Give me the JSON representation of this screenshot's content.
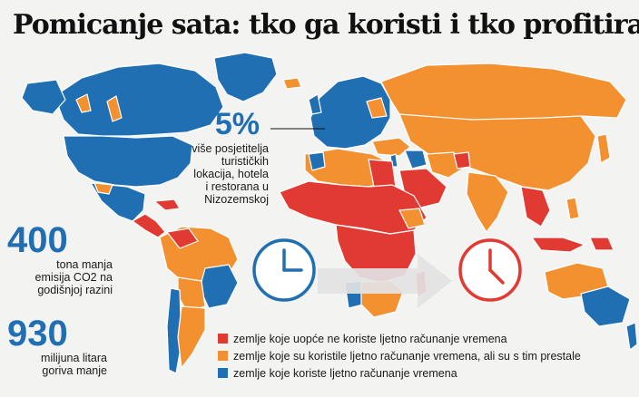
{
  "title": "Pomicanje sata: tko ga koristi i tko profitira",
  "colors": {
    "red": "#e03a33",
    "orange": "#f39131",
    "blue": "#1f6fb2",
    "land_outline": "#ffffff",
    "arrow": "#e3e3e3"
  },
  "stats": {
    "tourism": {
      "value": "5%",
      "lines": [
        "više posjetitelja",
        "turističkih",
        "lokacija, hotela",
        "i restorana u",
        "Nizozemskoj"
      ]
    },
    "co2": {
      "value": "400",
      "lines": [
        "tona manja",
        "emisija CO2 na",
        "godišnjoj razini"
      ]
    },
    "fuel": {
      "value": "930",
      "lines": [
        "milijuna litara",
        "goriva manje"
      ]
    }
  },
  "clocks": {
    "left": {
      "color": "#1f6fb2",
      "icon": "clock-icon"
    },
    "right": {
      "color": "#e03a33",
      "icon": "clock-icon"
    }
  },
  "legend": [
    {
      "color": "#e03a33",
      "label": "zemlje koje uopće ne koriste ljetno računanje vremena"
    },
    {
      "color": "#f39131",
      "label": "zemlje koje su koristile ljetno računanje vremena, ali su s tim prestale"
    },
    {
      "color": "#1f6fb2",
      "label": "zemlje koje koriste ljetno računanje vremena"
    }
  ]
}
